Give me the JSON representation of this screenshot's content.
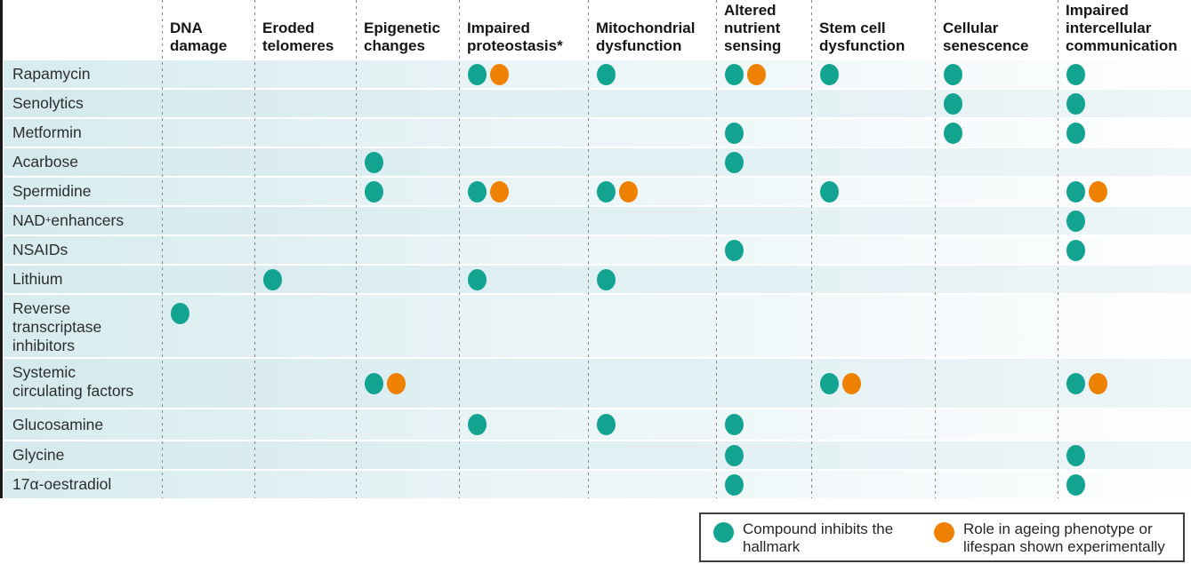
{
  "colors": {
    "teal": "#13a391",
    "orange": "#ee8102",
    "band_left": "#d7ecef",
    "separator_gray": "#868686"
  },
  "chart_data": {
    "type": "table",
    "title": "",
    "columns": [
      "DNA damage",
      "Eroded telomeres",
      "Epigenetic changes",
      "Impaired proteostasis*",
      "Mitochondrial dysfunction",
      "Altered nutrient sensing",
      "Stem cell dysfunction",
      "Cellular senescence",
      "Impaired intercellular communication"
    ],
    "rows": [
      {
        "label": "Rapamycin",
        "marks": [
          {
            "col": 3,
            "types": [
              "teal",
              "orange"
            ]
          },
          {
            "col": 4,
            "types": [
              "teal"
            ]
          },
          {
            "col": 5,
            "types": [
              "teal",
              "orange"
            ]
          },
          {
            "col": 6,
            "types": [
              "teal"
            ]
          },
          {
            "col": 7,
            "types": [
              "teal"
            ]
          },
          {
            "col": 8,
            "types": [
              "teal"
            ]
          }
        ]
      },
      {
        "label": "Senolytics",
        "marks": [
          {
            "col": 7,
            "types": [
              "teal"
            ]
          },
          {
            "col": 8,
            "types": [
              "teal"
            ]
          }
        ]
      },
      {
        "label": "Metformin",
        "marks": [
          {
            "col": 5,
            "types": [
              "teal"
            ]
          },
          {
            "col": 7,
            "types": [
              "teal"
            ]
          },
          {
            "col": 8,
            "types": [
              "teal"
            ]
          }
        ]
      },
      {
        "label": "Acarbose",
        "marks": [
          {
            "col": 2,
            "types": [
              "teal"
            ]
          },
          {
            "col": 5,
            "types": [
              "teal"
            ]
          }
        ]
      },
      {
        "label": "Spermidine",
        "marks": [
          {
            "col": 2,
            "types": [
              "teal"
            ]
          },
          {
            "col": 3,
            "types": [
              "teal",
              "orange"
            ]
          },
          {
            "col": 4,
            "types": [
              "teal",
              "orange"
            ]
          },
          {
            "col": 6,
            "types": [
              "teal"
            ]
          },
          {
            "col": 8,
            "types": [
              "teal",
              "orange"
            ]
          }
        ]
      },
      {
        "label": "NAD⁺ enhancers",
        "marks": [
          {
            "col": 8,
            "types": [
              "teal"
            ]
          }
        ]
      },
      {
        "label": "NSAIDs",
        "marks": [
          {
            "col": 5,
            "types": [
              "teal"
            ]
          },
          {
            "col": 8,
            "types": [
              "teal"
            ]
          }
        ]
      },
      {
        "label": "Lithium",
        "marks": [
          {
            "col": 1,
            "types": [
              "teal"
            ]
          },
          {
            "col": 3,
            "types": [
              "teal"
            ]
          },
          {
            "col": 4,
            "types": [
              "teal"
            ]
          }
        ]
      },
      {
        "label": "Reverse transcriptase inhibitors",
        "marks": [
          {
            "col": 0,
            "types": [
              "teal"
            ]
          }
        ]
      },
      {
        "label": "Systemic circulating factors",
        "marks": [
          {
            "col": 2,
            "types": [
              "teal",
              "orange"
            ]
          },
          {
            "col": 6,
            "types": [
              "teal",
              "orange"
            ]
          },
          {
            "col": 8,
            "types": [
              "teal",
              "orange"
            ]
          }
        ]
      },
      {
        "label": "Glucosamine",
        "marks": [
          {
            "col": 3,
            "types": [
              "teal"
            ]
          },
          {
            "col": 4,
            "types": [
              "teal"
            ]
          },
          {
            "col": 5,
            "types": [
              "teal"
            ]
          }
        ]
      },
      {
        "label": "Glycine",
        "marks": [
          {
            "col": 5,
            "types": [
              "teal"
            ]
          },
          {
            "col": 8,
            "types": [
              "teal"
            ]
          }
        ]
      },
      {
        "label": "17α-oestradiol",
        "marks": [
          {
            "col": 5,
            "types": [
              "teal"
            ]
          },
          {
            "col": 8,
            "types": [
              "teal"
            ]
          }
        ]
      }
    ],
    "legend": [
      {
        "swatch": "teal",
        "label": "Compound inhibits the hallmark"
      },
      {
        "swatch": "orange",
        "label": "Role in ageing phenotype or lifespan shown experimentally"
      }
    ],
    "layout_hints": {
      "grid": "dashed column separators",
      "legend_position": "bottom-right"
    }
  }
}
